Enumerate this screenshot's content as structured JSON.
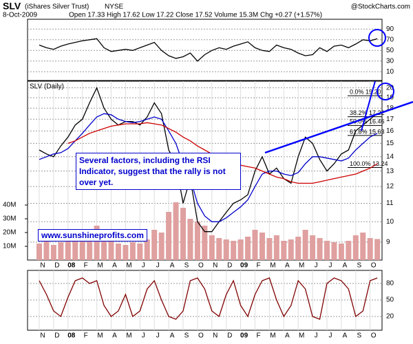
{
  "header": {
    "symbol": "SLV",
    "name": "(iShares Silver Trust)",
    "exchange": "NYSE",
    "date": "8-Oct-2009",
    "stats": "Open 17.33 High 17.62 Low 17.22 Close 17.52 Volume 15.3M Chg +0.27 (+1.57%)",
    "source": "@StockCharts.com"
  },
  "chart_data": [
    {
      "type": "line",
      "ylim": [
        0,
        100
      ],
      "yticks": [
        10,
        30,
        50,
        70,
        90
      ],
      "grid": true,
      "color": "#000000",
      "values": [
        60,
        55,
        52,
        58,
        62,
        65,
        68,
        70,
        72,
        55,
        48,
        50,
        52,
        50,
        55,
        60,
        65,
        50,
        40,
        35,
        38,
        45,
        30,
        42,
        50,
        55,
        52,
        58,
        62,
        66,
        55,
        50,
        48,
        60,
        55,
        52,
        45,
        40,
        42,
        55,
        48,
        58,
        60,
        55,
        62,
        70,
        68,
        72
      ]
    },
    {
      "type": "line",
      "title": "SLV (Daily)",
      "log_scale": true,
      "ylim": [
        8.2,
        20.7
      ],
      "yticks": [
        9,
        10,
        11,
        12,
        13,
        14,
        15,
        16,
        17,
        18,
        19,
        20
      ],
      "grid": true,
      "categories": [
        "N",
        null,
        "D",
        null,
        "08",
        null,
        "F",
        null,
        "M",
        null,
        "A",
        null,
        "M",
        null,
        "J",
        null,
        "J",
        null,
        "A",
        null,
        "S",
        null,
        "O",
        null,
        "N",
        null,
        "D",
        null,
        "09",
        null,
        "F",
        null,
        "M",
        null,
        "A",
        null,
        "M",
        null,
        "J",
        null,
        "J",
        null,
        "A",
        null,
        "S",
        null,
        "O",
        null
      ],
      "series": [
        {
          "color": "#000000",
          "values": [
            14.5,
            14.2,
            14.0,
            14.8,
            15.5,
            16.5,
            17.0,
            18.5,
            20.0,
            18.0,
            17.0,
            16.5,
            16.8,
            16.8,
            16.5,
            17.2,
            18.5,
            17.5,
            14.5,
            13.5,
            11.0,
            12.5,
            10.0,
            9.5,
            9.5,
            10.0,
            10.5,
            11.0,
            11.2,
            11.5,
            13.0,
            14.0,
            12.8,
            13.2,
            12.5,
            12.2,
            14.0,
            15.5,
            15.0,
            13.8,
            13.0,
            13.5,
            14.2,
            14.5,
            16.0,
            16.5,
            17.0,
            17.52
          ]
        },
        {
          "color": "#0000cc",
          "values": [
            13.8,
            14.0,
            14.2,
            14.3,
            14.6,
            15.2,
            15.8,
            16.5,
            17.2,
            17.5,
            17.4,
            17.0,
            16.8,
            16.7,
            16.8,
            17.0,
            17.2,
            17.0,
            16.0,
            15.0,
            13.5,
            12.5,
            11.0,
            10.3,
            10.0,
            10.0,
            10.2,
            10.5,
            10.8,
            11.2,
            12.0,
            12.8,
            13.0,
            13.0,
            12.8,
            12.7,
            12.9,
            13.5,
            14.0,
            14.0,
            13.9,
            13.8,
            13.7,
            13.9,
            14.5,
            15.0,
            15.5,
            15.8
          ]
        },
        {
          "color": "#cc0000",
          "values": [
            null,
            null,
            null,
            null,
            15.0,
            15.2,
            15.5,
            15.8,
            16.0,
            16.2,
            16.4,
            16.5,
            16.6,
            16.6,
            16.6,
            16.7,
            16.6,
            16.5,
            16.2,
            15.9,
            15.5,
            15.2,
            14.8,
            14.5,
            14.2,
            14.0,
            13.8,
            13.6,
            13.4,
            13.3,
            13.2,
            13.0,
            12.8,
            12.6,
            12.5,
            12.3,
            12.2,
            12.2,
            12.2,
            12.3,
            12.4,
            12.5,
            12.6,
            12.7,
            12.8,
            13.0,
            13.2,
            13.5
          ]
        }
      ],
      "volume": {
        "color": "#e0a0a0",
        "ylim": [
          0,
          130000000
        ],
        "yticks": [
          {
            "value": 10000000,
            "label": "10M"
          },
          {
            "value": 20000000,
            "label": "20M"
          },
          {
            "value": 30000000,
            "label": "30M"
          },
          {
            "value": 40000000,
            "label": "40M"
          }
        ],
        "values": [
          12000000,
          14000000,
          11000000,
          13000000,
          15000000,
          18000000,
          16000000,
          20000000,
          25000000,
          22000000,
          14000000,
          12000000,
          11000000,
          13000000,
          12000000,
          15000000,
          22000000,
          20000000,
          35000000,
          42000000,
          38000000,
          30000000,
          28000000,
          25000000,
          18000000,
          16000000,
          15000000,
          14000000,
          15000000,
          17000000,
          22000000,
          20000000,
          16000000,
          18000000,
          14000000,
          15000000,
          17000000,
          22000000,
          18000000,
          16000000,
          14000000,
          13000000,
          12000000,
          14000000,
          18000000,
          20000000,
          16000000,
          15300000
        ]
      },
      "fibonacci": [
        {
          "label": "0.0% 19.20",
          "value": 19.2
        },
        {
          "label": "38.2% 17.22",
          "value": 17.22
        },
        {
          "label": "50.0% 16.46",
          "value": 16.46
        },
        {
          "label": "61.8% 15.63",
          "value": 15.63
        },
        {
          "label": "100.0% 13.24",
          "value": 13.24
        }
      ],
      "annotations": [
        "Several factors, including the RSI Indicator, suggest that the rally is not over yet.",
        "www.sunshineprofits.com"
      ]
    },
    {
      "type": "line",
      "ylim": [
        0,
        100
      ],
      "yticks": [
        20,
        50,
        80
      ],
      "grid": true,
      "color": "#800000",
      "categories": [
        "N",
        null,
        "D",
        null,
        "08",
        null,
        "F",
        null,
        "M",
        null,
        "A",
        null,
        "M",
        null,
        "J",
        null,
        "J",
        null,
        "A",
        null,
        "S",
        null,
        "O",
        null,
        "N",
        null,
        "D",
        null,
        "09",
        null,
        "F",
        null,
        "M",
        null,
        "A",
        null,
        "M",
        null,
        "J",
        null,
        "J",
        null,
        "A",
        null,
        "S",
        null,
        "O",
        null
      ],
      "values": [
        85,
        60,
        30,
        20,
        55,
        85,
        90,
        80,
        85,
        40,
        20,
        30,
        60,
        20,
        30,
        70,
        85,
        50,
        20,
        15,
        30,
        85,
        90,
        70,
        30,
        20,
        60,
        85,
        40,
        20,
        60,
        85,
        90,
        50,
        20,
        40,
        85,
        70,
        20,
        15,
        80,
        90,
        85,
        70,
        20,
        30,
        85,
        90
      ]
    }
  ]
}
